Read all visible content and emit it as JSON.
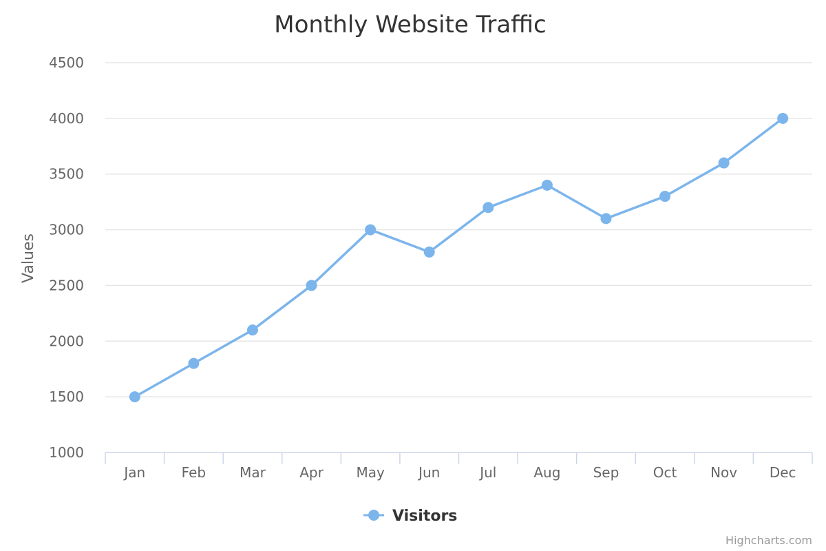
{
  "chart_data": {
    "type": "line",
    "title": "Monthly Website Traffic",
    "xlabel": "",
    "ylabel": "Values",
    "categories": [
      "Jan",
      "Feb",
      "Mar",
      "Apr",
      "May",
      "Jun",
      "Jul",
      "Aug",
      "Sep",
      "Oct",
      "Nov",
      "Dec"
    ],
    "series": [
      {
        "name": "Visitors",
        "values": [
          1500,
          1800,
          2100,
          2500,
          3000,
          2800,
          3200,
          3400,
          3100,
          3300,
          3600,
          4000
        ],
        "color": "#7cb5ec"
      }
    ],
    "ylim": [
      1000,
      4500
    ],
    "yticks": [
      1000,
      1500,
      2000,
      2500,
      3000,
      3500,
      4000,
      4500
    ],
    "grid": true,
    "legend": "bottom-center",
    "credits": "Highcharts.com"
  }
}
